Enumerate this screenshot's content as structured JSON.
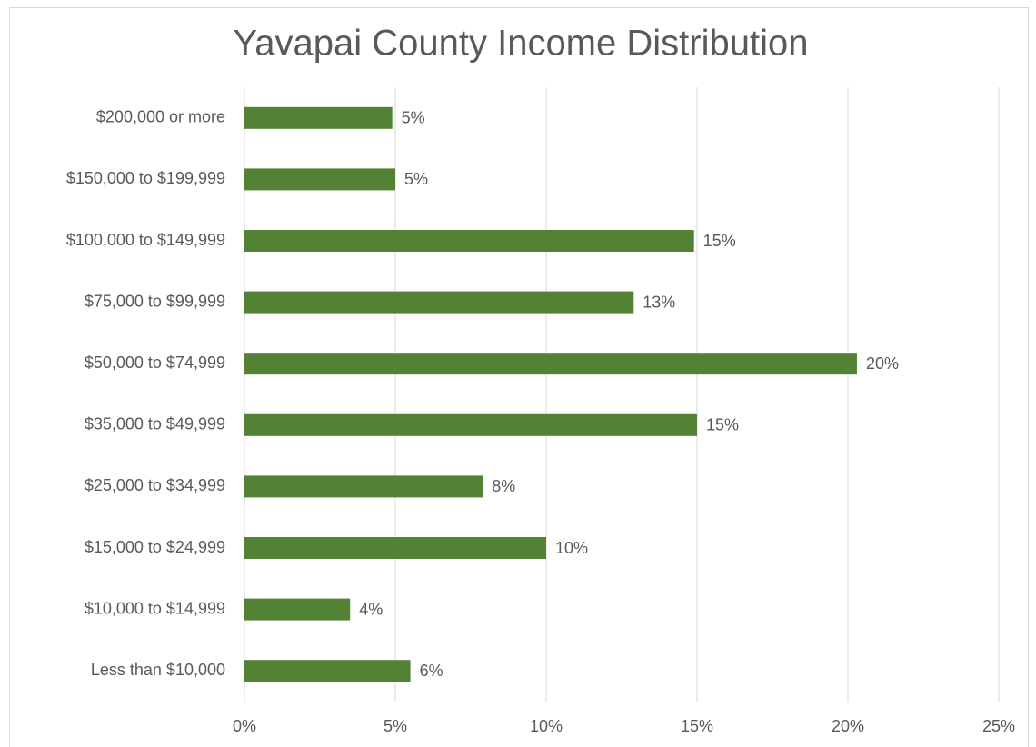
{
  "chart_data": {
    "type": "hbar",
    "title": "Yavapai County Income Distribution",
    "categories": [
      "$200,000 or more",
      "$150,000 to $199,999",
      "$100,000 to $149,999",
      "$75,000 to $99,999",
      "$50,000 to $74,999",
      "$35,000 to $49,999",
      "$25,000 to $34,999",
      "$15,000 to $24,999",
      "$10,000 to $14,999",
      "Less than $10,000"
    ],
    "values": [
      4.9,
      5.0,
      14.9,
      12.9,
      20.3,
      15.0,
      7.9,
      10.0,
      3.5,
      5.5
    ],
    "value_labels": [
      "5%",
      "5%",
      "15%",
      "13%",
      "20%",
      "15%",
      "8%",
      "10%",
      "4%",
      "6%"
    ],
    "color": "#548235",
    "xlim": [
      0,
      25
    ],
    "xticks": [
      {
        "value": 0,
        "label": "0%"
      },
      {
        "value": 5,
        "label": "5%"
      },
      {
        "value": 10,
        "label": "10%"
      },
      {
        "value": 15,
        "label": "15%"
      },
      {
        "value": 20,
        "label": "20%"
      },
      {
        "value": 25,
        "label": "25%"
      }
    ],
    "grid": true
  }
}
